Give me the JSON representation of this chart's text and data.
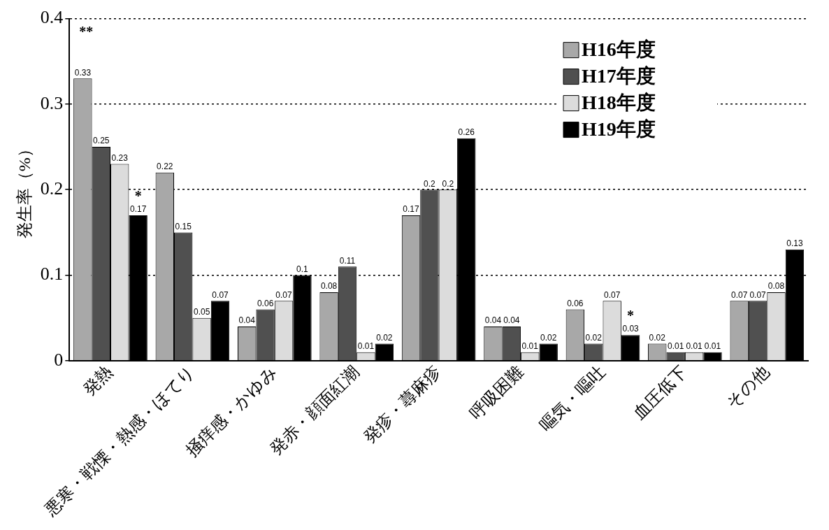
{
  "chart_data": {
    "type": "bar",
    "ylabel": "発生率（%）",
    "categories": [
      "発熱",
      "悪寒・戦慄・熱感・ほてり",
      "掻痒感・かゆみ",
      "発赤・顔面紅潮",
      "発疹・蕁麻疹",
      "呼吸困難",
      "嘔気・嘔吐",
      "血圧低下",
      "その他"
    ],
    "series": [
      {
        "name": "H16年度",
        "color": "#a8a8a8",
        "values": [
          0.33,
          0.22,
          0.04,
          0.08,
          0.17,
          0.04,
          0.06,
          0.02,
          0.07
        ]
      },
      {
        "name": "H17年度",
        "color": "#505050",
        "values": [
          0.25,
          0.15,
          0.06,
          0.11,
          0.2,
          0.04,
          0.02,
          0.01,
          0.07
        ]
      },
      {
        "name": "H18年度",
        "color": "#dcdcdc",
        "values": [
          0.23,
          0.05,
          0.07,
          0.01,
          0.2,
          0.01,
          0.07,
          0.01,
          0.08
        ]
      },
      {
        "name": "H19年度",
        "color": "#000000",
        "values": [
          0.17,
          0.07,
          0.1,
          0.02,
          0.26,
          0.02,
          0.03,
          0.01,
          0.13
        ]
      }
    ],
    "ylim": [
      0,
      0.4
    ],
    "yticks": [
      0,
      0.1,
      0.2,
      0.3,
      0.4
    ],
    "grid": "y",
    "legend": "top right",
    "data_labels": true,
    "annotations": [
      {
        "text": "*",
        "x": "発熱",
        "y": 0.17
      },
      "**",
      {
        "text": "*",
        "x": "嘔気・嘔吐",
        "y": 0.03
      }
    ]
  }
}
